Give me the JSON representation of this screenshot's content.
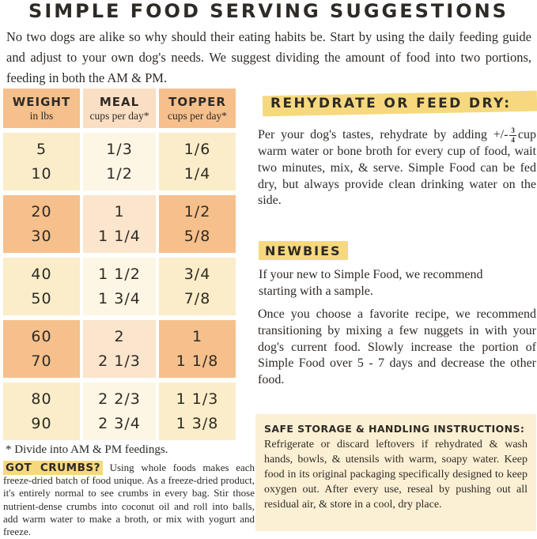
{
  "title": "SIMPLE FOOD SERVING SUGGESTIONS",
  "intro": "No two dogs are alike so why should their eating habits be. Start by using the daily feeding guide and adjust to your own dog's needs. We suggest dividing the amount of food into two portions, feeding in both the AM & PM.",
  "table": {
    "headers": [
      {
        "label": "WEIGHT",
        "sub": "in lbs"
      },
      {
        "label": "MEAL",
        "sub": "cups per day*"
      },
      {
        "label": "TOPPER",
        "sub": "cups per day*"
      }
    ],
    "groups": [
      {
        "tone": "cream",
        "rows": [
          [
            "5",
            "1/3",
            "1/6"
          ],
          [
            "10",
            "1/2",
            "1/4"
          ]
        ]
      },
      {
        "tone": "orange",
        "rows": [
          [
            "20",
            "1",
            "1/2"
          ],
          [
            "30",
            "1 1/4",
            "5/8"
          ]
        ]
      },
      {
        "tone": "cream",
        "rows": [
          [
            "40",
            "1 1/2",
            "3/4"
          ],
          [
            "50",
            "1 3/4",
            "7/8"
          ]
        ]
      },
      {
        "tone": "orange",
        "rows": [
          [
            "60",
            "2",
            "1"
          ],
          [
            "70",
            "2 1/3",
            "1 1/8"
          ]
        ]
      },
      {
        "tone": "cream",
        "rows": [
          [
            "80",
            "2 2/3",
            "1 1/3"
          ],
          [
            "90",
            "2 3/4",
            "1 3/8"
          ]
        ]
      }
    ],
    "footnote": "* Divide into AM & PM feedings."
  },
  "rehydrate": {
    "heading": "REHYDRATE OR FEED DRY:",
    "body_before_fraction": "Per your dog's tastes, rehydrate by adding +/-",
    "fraction": {
      "numerator": "3",
      "denominator": "4"
    },
    "body_after_fraction": "cup warm water or bone broth for every cup of food, wait two minutes, mix, & serve. Simple Food can be fed dry, but always provide clean drinking water on the side."
  },
  "newbies": {
    "heading": "NEWBIES",
    "para1": "If your new to Simple Food, we recommend starting with a sample.",
    "para2": "Once you choose a favorite recipe, we recommend transitioning by mixing a few nuggets in with your dog's current food. Slowly increase the portion of Simple Food over 5 - 7 days and decrease the other food."
  },
  "safe_storage": {
    "heading": "SAFE STORAGE & HANDLING INSTRUCTIONS:",
    "body": "Refrigerate or discard leftovers if rehydrated & wash hands, bowls, & utensils with warm, soapy water. Keep food in its original packaging specifically designed to keep oxygen out. After every use, reseal by pushing out all residual air, & store in a cool, dry place."
  },
  "crumbs": {
    "heading": "GOT CRUMBS?",
    "body": "Using whole foods makes each freeze-dried batch of food unique. As a freeze-dried product, it's entirely normal to see crumbs in every bag. Stir those nutrient-dense crumbs into coconut oil and roll into balls, add warm water to make a broth, or mix with yogurt and freeze."
  },
  "colors": {
    "ink": "#2e2a26",
    "page_bg": "#ffffff",
    "orange": "#f6c08c",
    "orange_mid": "#fbe5cd",
    "cream": "#fbedc9",
    "cream_mid": "#fdf6e4",
    "header_side": "#f6c08c",
    "header_mid": "#fbdfc4",
    "highlight_yellow": "#f6d97e",
    "box_bg": "#fcf0d4"
  }
}
